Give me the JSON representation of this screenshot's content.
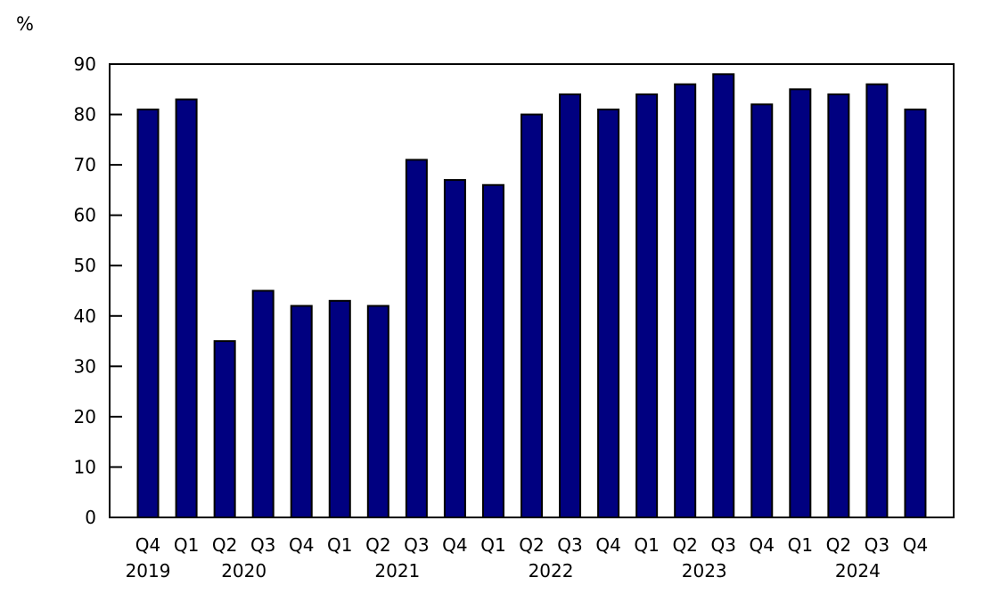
{
  "unit_label": "%",
  "chart_data": {
    "type": "bar",
    "unit_label": "%",
    "categories": [
      "Q4 2019",
      "Q1 2020",
      "Q2 2020",
      "Q3 2020",
      "Q4 2020",
      "Q1 2021",
      "Q2 2021",
      "Q3 2021",
      "Q4 2021",
      "Q1 2022",
      "Q2 2022",
      "Q3 2022",
      "Q4 2022",
      "Q1 2023",
      "Q2 2023",
      "Q3 2023",
      "Q4 2023",
      "Q1 2024",
      "Q2 2024",
      "Q3 2024",
      "Q4 2024"
    ],
    "quarter_labels": [
      "Q4",
      "Q1",
      "Q2",
      "Q3",
      "Q4",
      "Q1",
      "Q2",
      "Q3",
      "Q4",
      "Q1",
      "Q2",
      "Q3",
      "Q4",
      "Q1",
      "Q2",
      "Q3",
      "Q4",
      "Q1",
      "Q2",
      "Q3",
      "Q4"
    ],
    "year_groups": [
      {
        "year": "2019",
        "count": 1
      },
      {
        "year": "2020",
        "count": 4
      },
      {
        "year": "2021",
        "count": 4
      },
      {
        "year": "2022",
        "count": 4
      },
      {
        "year": "2023",
        "count": 4
      },
      {
        "year": "2024",
        "count": 4
      }
    ],
    "values": [
      81,
      83,
      35,
      45,
      42,
      43,
      42,
      71,
      67,
      66,
      80,
      84,
      81,
      84,
      86,
      88,
      82,
      85,
      84,
      86,
      81
    ],
    "ylim": [
      0,
      90
    ],
    "yticks": [
      0,
      10,
      20,
      30,
      40,
      50,
      60,
      70,
      80,
      90
    ],
    "grid": false,
    "legend_position": "none",
    "bar_color": "#000080",
    "bar_border_color": "#000000",
    "axis_color": "#000000",
    "text_color": "#000000"
  }
}
